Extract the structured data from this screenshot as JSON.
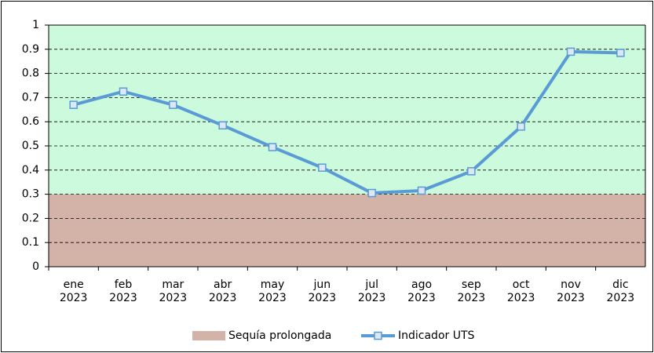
{
  "chart_data": {
    "type": "line",
    "categories": [
      "ene 2023",
      "feb 2023",
      "mar 2023",
      "abr 2023",
      "may 2023",
      "jun 2023",
      "jul 2023",
      "ago 2023",
      "sep 2023",
      "oct 2023",
      "nov 2023",
      "dic 2023"
    ],
    "series": [
      {
        "name": "Indicador UTS",
        "color": "#5b9bd5",
        "values": [
          0.67,
          0.725,
          0.67,
          0.585,
          0.495,
          0.41,
          0.305,
          0.315,
          0.395,
          0.58,
          0.89,
          0.885
        ]
      }
    ],
    "band": {
      "name": "Sequía prolongada",
      "color": "#d3b2a8",
      "value": 0.3
    },
    "plot_background": "#ccfadc",
    "ylim": [
      0,
      1
    ],
    "yticks": [
      0,
      0.1,
      0.2,
      0.3,
      0.4,
      0.5,
      0.6,
      0.7,
      0.8,
      0.9,
      1
    ],
    "grid": true,
    "legend": "bottom"
  }
}
